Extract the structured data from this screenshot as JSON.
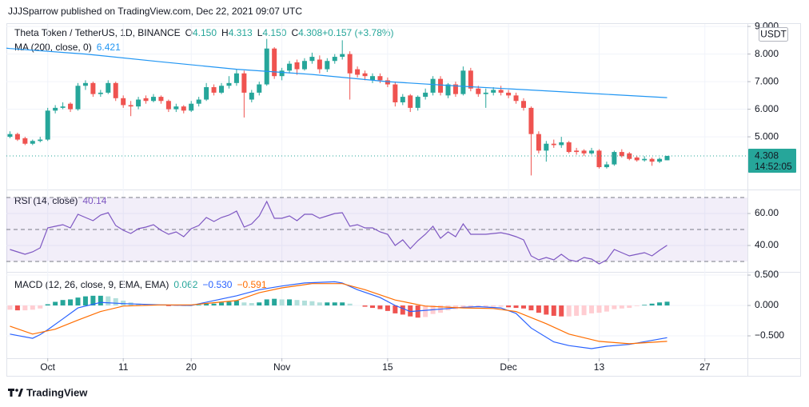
{
  "header": {
    "text": "JJJSparrow published on TradingView.com, Dec 22, 2021 09:07 UTC"
  },
  "footer": {
    "brand": "TradingView"
  },
  "chart_data": [
    {
      "type": "candlestick",
      "title": "Theta Token / TetherUS, 1D, BINANCE",
      "legend_values": [
        [
          "O",
          "4.150"
        ],
        [
          "H",
          "4.313"
        ],
        [
          "L",
          "4.150"
        ],
        [
          "C",
          "4.308"
        ],
        [
          "",
          "+0.157 (+3.78%)"
        ]
      ],
      "currency": "USDT",
      "last_price_label": "4.308",
      "countdown": "14:52:05",
      "up_color": "#26a69a",
      "down_color": "#ef5350",
      "grid": true,
      "xlim": [
        "2021-09-25",
        "2022-01-01"
      ],
      "xticks": [
        {
          "value": "2021-10-01",
          "label": "Oct"
        },
        {
          "value": "2021-10-11",
          "label": "11"
        },
        {
          "value": "2021-10-20",
          "label": "20"
        },
        {
          "value": "2021-11-01",
          "label": "Nov"
        },
        {
          "value": "2021-11-15",
          "label": "15"
        },
        {
          "value": "2021-12-01",
          "label": "Dec"
        },
        {
          "value": "2021-12-13",
          "label": "13"
        },
        {
          "value": "2021-12-27",
          "label": "27"
        }
      ],
      "ylim": [
        3.09,
        9.09
      ],
      "yticks": [
        {
          "value": 5,
          "label": "5.000"
        },
        {
          "value": 6,
          "label": "6.000"
        },
        {
          "value": 7,
          "label": "7.000"
        },
        {
          "value": 8,
          "label": "8.000"
        },
        {
          "value": 9,
          "label": "9.000"
        }
      ],
      "x": [
        "2021-09-26",
        "2021-09-27",
        "2021-09-28",
        "2021-09-29",
        "2021-09-30",
        "2021-10-01",
        "2021-10-02",
        "2021-10-03",
        "2021-10-04",
        "2021-10-05",
        "2021-10-06",
        "2021-10-07",
        "2021-10-08",
        "2021-10-09",
        "2021-10-10",
        "2021-10-11",
        "2021-10-12",
        "2021-10-13",
        "2021-10-14",
        "2021-10-15",
        "2021-10-16",
        "2021-10-17",
        "2021-10-18",
        "2021-10-19",
        "2021-10-20",
        "2021-10-21",
        "2021-10-22",
        "2021-10-23",
        "2021-10-24",
        "2021-10-25",
        "2021-10-26",
        "2021-10-27",
        "2021-10-28",
        "2021-10-29",
        "2021-10-30",
        "2021-10-31",
        "2021-11-01",
        "2021-11-02",
        "2021-11-03",
        "2021-11-04",
        "2021-11-05",
        "2021-11-06",
        "2021-11-07",
        "2021-11-08",
        "2021-11-09",
        "2021-11-10",
        "2021-11-11",
        "2021-11-12",
        "2021-11-13",
        "2021-11-14",
        "2021-11-15",
        "2021-11-16",
        "2021-11-17",
        "2021-11-18",
        "2021-11-19",
        "2021-11-20",
        "2021-11-21",
        "2021-11-22",
        "2021-11-23",
        "2021-11-24",
        "2021-11-25",
        "2021-11-26",
        "2021-11-27",
        "2021-11-28",
        "2021-11-29",
        "2021-11-30",
        "2021-12-01",
        "2021-12-02",
        "2021-12-03",
        "2021-12-04",
        "2021-12-05",
        "2021-12-06",
        "2021-12-07",
        "2021-12-08",
        "2021-12-09",
        "2021-12-10",
        "2021-12-11",
        "2021-12-12",
        "2021-12-13",
        "2021-12-14",
        "2021-12-15",
        "2021-12-16",
        "2021-12-17",
        "2021-12-18",
        "2021-12-19",
        "2021-12-20",
        "2021-12-21",
        "2021-12-22"
      ],
      "open": [
        5.0,
        5.1,
        4.95,
        4.75,
        4.85,
        4.9,
        5.95,
        6.05,
        6.2,
        6.0,
        6.85,
        6.95,
        6.55,
        6.6,
        6.95,
        6.4,
        6.15,
        6.1,
        6.4,
        6.3,
        6.45,
        6.3,
        6.0,
        6.1,
        5.95,
        6.2,
        6.35,
        6.8,
        6.6,
        6.85,
        6.95,
        7.3,
        6.35,
        6.6,
        6.9,
        8.2,
        7.2,
        7.4,
        7.7,
        7.45,
        7.75,
        7.8,
        7.45,
        7.75,
        7.9,
        8.0,
        7.45,
        7.3,
        7.05,
        7.2,
        7.05,
        6.9,
        6.25,
        6.5,
        6.05,
        6.45,
        6.6,
        7.1,
        6.5,
        6.9,
        6.55,
        7.4,
        6.75,
        6.55,
        6.6,
        6.7,
        6.6,
        6.5,
        6.3,
        6.05,
        5.1,
        4.5,
        4.75,
        4.7,
        4.8,
        4.5,
        4.5,
        4.4,
        4.5,
        3.9,
        4.0,
        4.45,
        4.4,
        4.25,
        4.15,
        4.2,
        4.1,
        4.15
      ],
      "high": [
        5.2,
        5.15,
        5.0,
        4.9,
        5.0,
        6.05,
        6.15,
        6.25,
        6.25,
        6.95,
        7.05,
        7.0,
        6.7,
        7.05,
        7.0,
        6.5,
        6.3,
        6.45,
        6.5,
        6.55,
        6.5,
        6.35,
        6.2,
        6.15,
        6.3,
        6.45,
        6.95,
        6.9,
        6.95,
        7.2,
        7.45,
        7.4,
        6.7,
        7.0,
        8.55,
        8.25,
        7.5,
        7.75,
        7.8,
        7.85,
        8.05,
        7.95,
        7.85,
        8.0,
        8.5,
        8.1,
        7.55,
        7.4,
        7.3,
        7.3,
        7.15,
        7.0,
        6.55,
        6.55,
        6.5,
        6.75,
        7.2,
        7.2,
        6.95,
        7.0,
        7.55,
        7.5,
        6.85,
        6.75,
        6.8,
        6.85,
        6.7,
        6.6,
        6.4,
        6.1,
        5.2,
        4.85,
        4.9,
        5.0,
        4.85,
        4.6,
        4.55,
        4.6,
        4.55,
        4.1,
        4.5,
        4.55,
        4.45,
        4.3,
        4.3,
        4.25,
        4.25,
        4.313
      ],
      "low": [
        4.95,
        4.85,
        4.7,
        4.7,
        4.8,
        4.85,
        5.85,
        6.0,
        5.9,
        5.95,
        6.7,
        6.45,
        6.45,
        6.55,
        6.3,
        6.05,
        5.75,
        6.0,
        6.2,
        6.25,
        6.2,
        5.9,
        5.9,
        5.85,
        5.9,
        6.1,
        6.3,
        6.5,
        6.55,
        6.75,
        6.85,
        5.7,
        6.25,
        6.5,
        6.85,
        7.1,
        7.05,
        7.3,
        7.25,
        7.4,
        7.65,
        7.3,
        7.35,
        7.65,
        7.8,
        6.35,
        7.15,
        7.05,
        6.95,
        6.95,
        6.8,
        6.1,
        6.15,
        5.9,
        5.95,
        6.35,
        6.5,
        6.5,
        6.4,
        6.45,
        6.5,
        6.65,
        6.45,
        6.05,
        6.5,
        6.5,
        6.4,
        6.2,
        5.95,
        3.6,
        4.4,
        4.1,
        4.6,
        4.6,
        4.4,
        4.35,
        4.3,
        4.35,
        3.85,
        3.85,
        3.95,
        4.25,
        4.15,
        4.1,
        4.1,
        3.95,
        4.05,
        4.15
      ],
      "close": [
        5.1,
        4.9,
        4.75,
        4.85,
        4.9,
        5.95,
        6.05,
        6.1,
        6.0,
        6.85,
        6.95,
        6.55,
        6.6,
        6.95,
        6.4,
        6.15,
        6.1,
        6.35,
        6.3,
        6.45,
        6.3,
        6.0,
        6.1,
        5.95,
        6.2,
        6.35,
        6.8,
        6.6,
        6.85,
        6.95,
        7.3,
        6.6,
        6.6,
        6.9,
        8.2,
        7.2,
        7.4,
        7.65,
        7.45,
        7.75,
        7.9,
        7.45,
        7.75,
        7.9,
        8.0,
        7.3,
        7.25,
        7.2,
        7.2,
        7.05,
        6.9,
        6.25,
        6.45,
        6.05,
        6.45,
        6.6,
        7.1,
        6.6,
        6.9,
        6.55,
        7.4,
        6.75,
        6.55,
        6.6,
        6.7,
        6.6,
        6.5,
        6.3,
        6.05,
        5.1,
        4.5,
        4.75,
        4.7,
        4.8,
        4.45,
        4.45,
        4.4,
        4.5,
        3.9,
        4.0,
        4.45,
        4.3,
        4.2,
        4.15,
        4.2,
        4.1,
        4.2,
        4.308
      ],
      "series": [
        {
          "name": "MA (200, close, 0)",
          "label": "6.421",
          "color": "#2196f3",
          "x": [
            "2021-09-25",
            "2021-09-26",
            "2021-10-06",
            "2021-10-16",
            "2021-10-26",
            "2021-11-05",
            "2021-11-15",
            "2021-11-25",
            "2021-12-05",
            "2021-12-12",
            "2021-12-22"
          ],
          "values": [
            8.23,
            8.2,
            8.0,
            7.72,
            7.45,
            7.26,
            7.0,
            6.83,
            6.68,
            6.57,
            6.421
          ]
        }
      ]
    },
    {
      "type": "line",
      "ylim": [
        23.5,
        75
      ],
      "yticks": [
        {
          "value": 40,
          "label": "40.00"
        },
        {
          "value": 60,
          "label": "60.00"
        }
      ],
      "grid": true,
      "levels": [
        70,
        50,
        30
      ],
      "band_color": "#7e57c2",
      "series": [
        {
          "name": "RSI (14, close)",
          "label": "40.14",
          "color": "#7e57c2",
          "values": [
            37.5,
            36,
            34.5,
            36,
            38.5,
            51,
            52,
            53,
            51,
            59.5,
            57.5,
            55.5,
            59,
            60.5,
            52.5,
            49.5,
            47.5,
            50.5,
            51.5,
            53,
            49.5,
            47,
            48.5,
            45.5,
            50.5,
            52.5,
            57.5,
            55,
            57.5,
            59,
            61.5,
            51.5,
            53.5,
            58.5,
            67.5,
            57,
            57,
            58.5,
            55.5,
            59.5,
            59.5,
            57,
            58.5,
            60,
            60.5,
            52,
            53,
            51,
            51,
            48.5,
            47,
            40,
            43.5,
            38,
            43,
            47,
            52,
            44.5,
            48.5,
            45.5,
            53.5,
            47,
            47,
            47,
            47.5,
            48,
            47,
            45.5,
            43.5,
            33.5,
            31,
            32.5,
            31,
            34.5,
            31,
            30,
            32.5,
            31.5,
            28.5,
            31,
            37.5,
            35.5,
            33.5,
            34.5,
            35.5,
            33.5,
            37,
            40.14
          ]
        }
      ]
    },
    {
      "type": "combo",
      "title": "MACD (12, 26, close, 9, EMA, EMA)",
      "ylim": [
        -0.868,
        0.553
      ],
      "yticks": [
        {
          "value": 0.5,
          "label": "0.500"
        },
        {
          "value": 0,
          "label": "0.000"
        },
        {
          "value": -0.5,
          "label": "−0.500"
        }
      ],
      "grid": true,
      "histogram": {
        "label": "0.062",
        "colors": [
          "#26a69a",
          "#b2dfdb",
          "#ffcdd2",
          "#ef5350"
        ],
        "values": [
          -0.07,
          -0.08,
          -0.08,
          -0.07,
          -0.05,
          0.02,
          0.06,
          0.09,
          0.1,
          0.13,
          0.15,
          0.16,
          0.16,
          0.15,
          0.12,
          0.08,
          0.05,
          0.03,
          0.02,
          0.01,
          0,
          -0.01,
          -0.01,
          -0.01,
          0,
          0.01,
          0.03,
          0.03,
          0.05,
          0.06,
          0.08,
          0.05,
          0.04,
          0.05,
          0.1,
          0.11,
          0.1,
          0.1,
          0.09,
          0.08,
          0.07,
          0.05,
          0.05,
          0.05,
          0.05,
          0.03,
          0,
          -0.02,
          -0.04,
          -0.06,
          -0.09,
          -0.13,
          -0.15,
          -0.18,
          -0.2,
          -0.19,
          -0.14,
          -0.12,
          -0.08,
          -0.06,
          -0.03,
          -0.02,
          -0.02,
          -0.02,
          -0.02,
          -0.02,
          -0.03,
          -0.04,
          -0.05,
          -0.08,
          -0.12,
          -0.15,
          -0.17,
          -0.18,
          -0.18,
          -0.17,
          -0.16,
          -0.13,
          -0.12,
          -0.1,
          -0.06,
          -0.05,
          -0.04,
          -0.01,
          0.01,
          0.03,
          0.05,
          0.062
        ]
      },
      "series": [
        {
          "label": "−0.530",
          "color": "#2962ff",
          "x": [
            "2021-09-26",
            "2021-09-29",
            "2021-09-30",
            "2021-10-01",
            "2021-10-03",
            "2021-10-05",
            "2021-10-08",
            "2021-10-11",
            "2021-10-16",
            "2021-10-20",
            "2021-10-23",
            "2021-10-26",
            "2021-10-29",
            "2021-11-01",
            "2021-11-04",
            "2021-11-08",
            "2021-11-09",
            "2021-11-11",
            "2021-11-14",
            "2021-11-16",
            "2021-11-18",
            "2021-11-20",
            "2021-11-23",
            "2021-11-25",
            "2021-11-27",
            "2021-11-30",
            "2021-12-02",
            "2021-12-04",
            "2021-12-07",
            "2021-12-09",
            "2021-12-12",
            "2021-12-14",
            "2021-12-17",
            "2021-12-22"
          ],
          "values": [
            -0.47,
            -0.54,
            -0.48,
            -0.4,
            -0.22,
            -0.04,
            0.05,
            0.03,
            0.01,
            0.0,
            0.08,
            0.16,
            0.26,
            0.32,
            0.37,
            0.39,
            0.37,
            0.26,
            0.13,
            0.0,
            -0.1,
            -0.08,
            -0.05,
            -0.03,
            -0.02,
            -0.04,
            -0.13,
            -0.37,
            -0.6,
            -0.66,
            -0.71,
            -0.67,
            -0.64,
            -0.53
          ]
        },
        {
          "label": "−0.591",
          "color": "#ff6d00",
          "x": [
            "2021-09-26",
            "2021-09-29",
            "2021-10-02",
            "2021-10-05",
            "2021-10-08",
            "2021-10-11",
            "2021-10-16",
            "2021-10-20",
            "2021-10-26",
            "2021-10-29",
            "2021-11-01",
            "2021-11-05",
            "2021-11-09",
            "2021-11-12",
            "2021-11-16",
            "2021-11-20",
            "2021-11-25",
            "2021-11-29",
            "2021-12-02",
            "2021-12-06",
            "2021-12-09",
            "2021-12-13",
            "2021-12-17",
            "2021-12-22"
          ],
          "values": [
            -0.34,
            -0.47,
            -0.39,
            -0.24,
            -0.1,
            -0.01,
            0.01,
            0.01,
            0.08,
            0.21,
            0.29,
            0.36,
            0.36,
            0.26,
            0.09,
            -0.01,
            -0.04,
            -0.05,
            -0.1,
            -0.3,
            -0.47,
            -0.59,
            -0.63,
            -0.591
          ]
        }
      ]
    }
  ]
}
